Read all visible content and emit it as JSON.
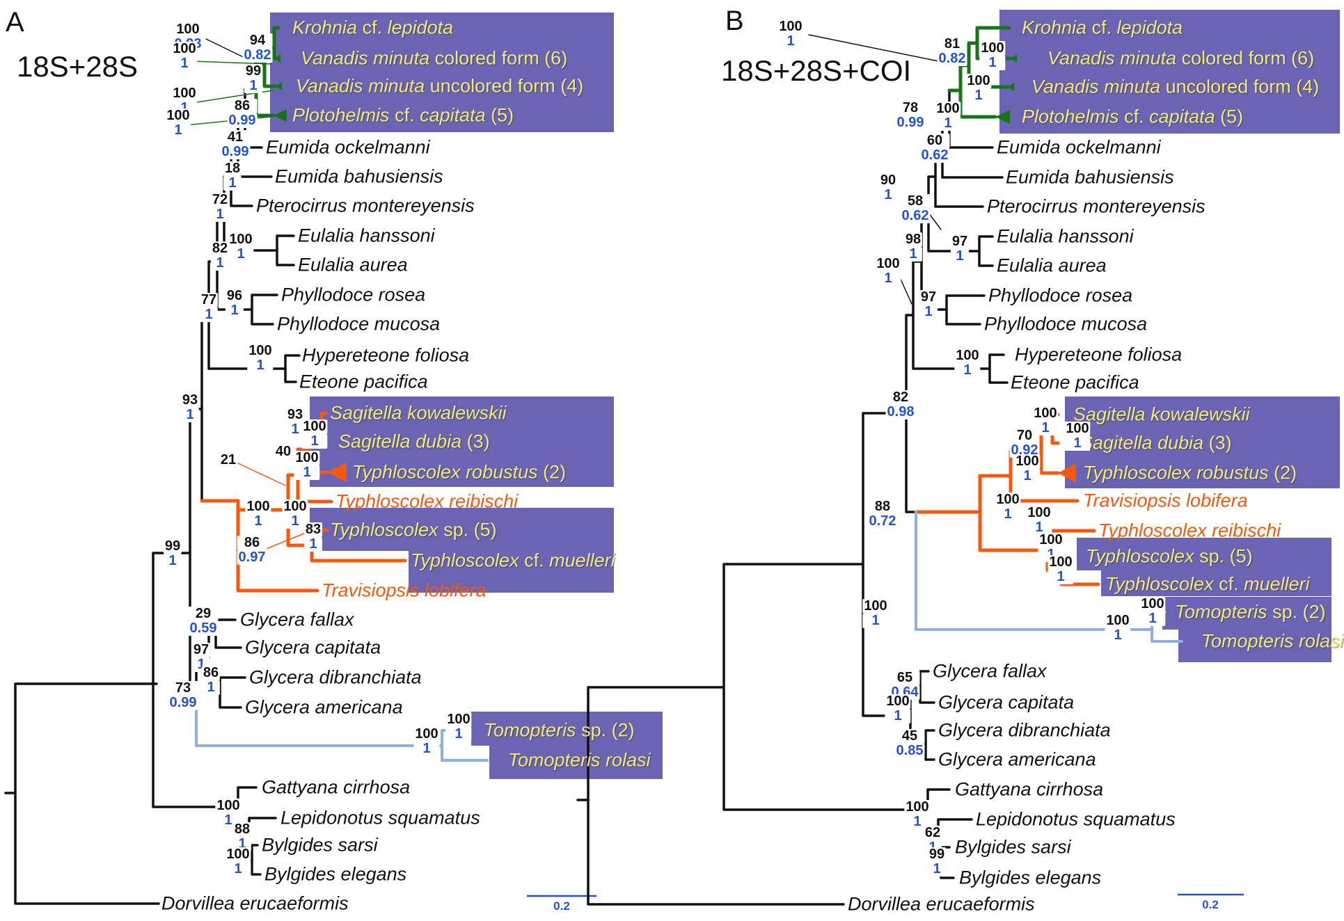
{
  "figure": {
    "colors": {
      "box_purple": "#6b64b4",
      "taxon_yellow": "#f2eb6e",
      "taxon_black": "#111111",
      "clade_green": "#177517",
      "clade_orange": "#f4590e",
      "clade_lightblue": "#8fafe4",
      "branch_black": "#111111",
      "support_bootstrap": "#111111",
      "support_posterior": "#2353d3",
      "scale_blue": "#2353d3"
    },
    "panels": [
      {
        "label": "A",
        "title": "18S+28S",
        "scale_label": "0.2",
        "taxa": [
          {
            "color": "y",
            "segs": [
              [
                "Krohnia",
                1
              ],
              [
                " cf. ",
                0
              ],
              [
                "lepidota",
                1
              ]
            ]
          },
          {
            "color": "y",
            "segs": [
              [
                "Vanadis minuta",
                1
              ],
              [
                " colored form (6)",
                0
              ]
            ]
          },
          {
            "color": "y",
            "segs": [
              [
                "Vanadis minuta",
                1
              ],
              [
                " uncolored form (4)",
                0
              ]
            ]
          },
          {
            "color": "y",
            "segs": [
              [
                "Plotohelmis",
                1
              ],
              [
                " cf. ",
                0
              ],
              [
                "capitata",
                1
              ],
              [
                " (5)",
                0
              ]
            ]
          },
          {
            "color": "k",
            "segs": [
              [
                "Eumida ockelmanni",
                1
              ]
            ]
          },
          {
            "color": "k",
            "segs": [
              [
                "Eumida bahusiensis",
                1
              ]
            ]
          },
          {
            "color": "k",
            "segs": [
              [
                "Pterocirrus montereyensis",
                1
              ]
            ]
          },
          {
            "color": "k",
            "segs": [
              [
                "Eulalia hanssoni",
                1
              ]
            ]
          },
          {
            "color": "k",
            "segs": [
              [
                "Eulalia aurea",
                1
              ]
            ]
          },
          {
            "color": "k",
            "segs": [
              [
                "Phyllodoce rosea",
                1
              ]
            ]
          },
          {
            "color": "k",
            "segs": [
              [
                "Phyllodoce mucosa",
                1
              ]
            ]
          },
          {
            "color": "k",
            "segs": [
              [
                "Hypereteone foliosa",
                1
              ]
            ]
          },
          {
            "color": "k",
            "segs": [
              [
                "Eteone pacifica",
                1
              ]
            ]
          },
          {
            "color": "y",
            "segs": [
              [
                "Sagitella kowalewskii",
                1
              ]
            ]
          },
          {
            "color": "y",
            "segs": [
              [
                "Sagitella dubia",
                1
              ],
              [
                " (3)",
                0
              ]
            ]
          },
          {
            "color": "y",
            "segs": [
              [
                "Typhloscolex robustus",
                1
              ],
              [
                " (2)",
                0
              ]
            ]
          },
          {
            "color": "o",
            "segs": [
              [
                "Typhloscolex reibischi",
                1
              ]
            ]
          },
          {
            "color": "y",
            "segs": [
              [
                "Typhloscolex",
                1
              ],
              [
                " sp. (5)",
                0
              ]
            ]
          },
          {
            "color": "y",
            "segs": [
              [
                "Typhloscolex",
                1
              ],
              [
                " cf. ",
                0
              ],
              [
                "muelleri",
                1
              ]
            ]
          },
          {
            "color": "o",
            "segs": [
              [
                "Travisiopsis lobifera",
                1
              ]
            ]
          },
          {
            "color": "k",
            "segs": [
              [
                "Glycera fallax",
                1
              ]
            ]
          },
          {
            "color": "k",
            "segs": [
              [
                "Glycera capitata",
                1
              ]
            ]
          },
          {
            "color": "k",
            "segs": [
              [
                "Glycera dibranchiata",
                1
              ]
            ]
          },
          {
            "color": "k",
            "segs": [
              [
                "Glycera americana",
                1
              ]
            ]
          },
          {
            "color": "y",
            "segs": [
              [
                "Tomopteris",
                1
              ],
              [
                " sp. (2)",
                0
              ]
            ]
          },
          {
            "color": "y",
            "segs": [
              [
                "Tomopteris rolasi",
                1
              ]
            ]
          },
          {
            "color": "k",
            "segs": [
              [
                "Gattyana cirrhosa",
                1
              ]
            ]
          },
          {
            "color": "k",
            "segs": [
              [
                "Lepidonotus squamatus",
                1
              ]
            ]
          },
          {
            "color": "k",
            "segs": [
              [
                "Bylgides sarsi",
                1
              ]
            ]
          },
          {
            "color": "k",
            "segs": [
              [
                "Bylgides elegans",
                1
              ]
            ]
          },
          {
            "color": "k",
            "segs": [
              [
                "Dorvillea erucaeformis",
                1
              ]
            ]
          }
        ],
        "supports": [
          {
            "bs": "100",
            "pp": "0.93"
          },
          {
            "bs": "94",
            "pp": "0.82"
          },
          {
            "bs": "100",
            "pp": "1"
          },
          {
            "bs": "99",
            "pp": "1"
          },
          {
            "bs": "100",
            "pp": "1"
          },
          {
            "bs": "86",
            "pp": "0.99"
          },
          {
            "bs": "100",
            "pp": "1"
          },
          {
            "bs": "41",
            "pp": "0.99"
          },
          {
            "bs": "18",
            "pp": "1"
          },
          {
            "bs": "72",
            "pp": "1"
          },
          {
            "bs": "100",
            "pp": "1"
          },
          {
            "bs": "82",
            "pp": "1"
          },
          {
            "bs": "96",
            "pp": "1"
          },
          {
            "bs": "77",
            "pp": "1"
          },
          {
            "bs": "100",
            "pp": "1"
          },
          {
            "bs": "93",
            "pp": "1"
          },
          {
            "bs": "93",
            "pp": "1"
          },
          {
            "bs": "100",
            "pp": "1"
          },
          {
            "bs": "40",
            "pp": ""
          },
          {
            "bs": "100",
            "pp": "1"
          },
          {
            "bs": "21",
            "pp": ""
          },
          {
            "bs": "99",
            "pp": "1"
          },
          {
            "bs": "100",
            "pp": "1"
          },
          {
            "bs": "100",
            "pp": "1"
          },
          {
            "bs": "83",
            "pp": "1"
          },
          {
            "bs": "86",
            "pp": "0.97"
          },
          {
            "bs": "29",
            "pp": "0.59"
          },
          {
            "bs": "97",
            "pp": "1"
          },
          {
            "bs": "86",
            "pp": "1"
          },
          {
            "bs": "73",
            "pp": "0.99"
          },
          {
            "bs": "100",
            "pp": "1"
          },
          {
            "bs": "100",
            "pp": "1"
          },
          {
            "bs": "100",
            "pp": "1"
          },
          {
            "bs": "88",
            "pp": "1"
          },
          {
            "bs": "100",
            "pp": "1"
          }
        ]
      },
      {
        "label": "B",
        "title": "18S+28S+COI",
        "scale_label": "0.2",
        "taxa": [
          {
            "color": "y",
            "segs": [
              [
                "Krohnia",
                1
              ],
              [
                " cf. ",
                0
              ],
              [
                "lepidota",
                1
              ]
            ]
          },
          {
            "color": "y",
            "segs": [
              [
                "Vanadis minuta",
                1
              ],
              [
                " colored form (6)",
                0
              ]
            ]
          },
          {
            "color": "y",
            "segs": [
              [
                "Vanadis minuta",
                1
              ],
              [
                " uncolored form (4)",
                0
              ]
            ]
          },
          {
            "color": "y",
            "segs": [
              [
                "Plotohelmis",
                1
              ],
              [
                " cf. ",
                0
              ],
              [
                "capitata",
                1
              ],
              [
                " (5)",
                0
              ]
            ]
          },
          {
            "color": "k",
            "segs": [
              [
                "Eumida ockelmanni",
                1
              ]
            ]
          },
          {
            "color": "k",
            "segs": [
              [
                "Eumida bahusiensis",
                1
              ]
            ]
          },
          {
            "color": "k",
            "segs": [
              [
                "Pterocirrus montereyensis",
                1
              ]
            ]
          },
          {
            "color": "k",
            "segs": [
              [
                "Eulalia hanssoni",
                1
              ]
            ]
          },
          {
            "color": "k",
            "segs": [
              [
                "Eulalia aurea",
                1
              ]
            ]
          },
          {
            "color": "k",
            "segs": [
              [
                "Phyllodoce rosea",
                1
              ]
            ]
          },
          {
            "color": "k",
            "segs": [
              [
                "Phyllodoce mucosa",
                1
              ]
            ]
          },
          {
            "color": "k",
            "segs": [
              [
                "Hypereteone foliosa",
                1
              ]
            ]
          },
          {
            "color": "k",
            "segs": [
              [
                "Eteone pacifica",
                1
              ]
            ]
          },
          {
            "color": "y",
            "segs": [
              [
                "Sagitella kowalewskii",
                1
              ]
            ]
          },
          {
            "color": "y",
            "segs": [
              [
                "Sagitella dubia",
                1
              ],
              [
                " (3)",
                0
              ]
            ]
          },
          {
            "color": "y",
            "segs": [
              [
                "Typhloscolex robustus",
                1
              ],
              [
                " (2)",
                0
              ]
            ]
          },
          {
            "color": "o",
            "segs": [
              [
                "Travisiopsis lobifera",
                1
              ]
            ]
          },
          {
            "color": "o",
            "segs": [
              [
                "Typhloscolex reibischi",
                1
              ]
            ]
          },
          {
            "color": "y",
            "segs": [
              [
                "Typhloscolex",
                1
              ],
              [
                " sp. (5)",
                0
              ]
            ]
          },
          {
            "color": "y",
            "segs": [
              [
                "Typhloscolex",
                1
              ],
              [
                " cf. ",
                0
              ],
              [
                "muelleri",
                1
              ]
            ]
          },
          {
            "color": "y",
            "segs": [
              [
                "Tomopteris",
                1
              ],
              [
                " sp. (2)",
                0
              ]
            ]
          },
          {
            "color": "y",
            "segs": [
              [
                "Tomopteris rolasi",
                1
              ]
            ]
          },
          {
            "color": "k",
            "segs": [
              [
                "Glycera fallax",
                1
              ]
            ]
          },
          {
            "color": "k",
            "segs": [
              [
                "Glycera capitata",
                1
              ]
            ]
          },
          {
            "color": "k",
            "segs": [
              [
                "Glycera dibranchiata",
                1
              ]
            ]
          },
          {
            "color": "k",
            "segs": [
              [
                "Glycera americana",
                1
              ]
            ]
          },
          {
            "color": "k",
            "segs": [
              [
                "Gattyana cirrhosa",
                1
              ]
            ]
          },
          {
            "color": "k",
            "segs": [
              [
                "Lepidonotus squamatus",
                1
              ]
            ]
          },
          {
            "color": "k",
            "segs": [
              [
                "Bylgides sarsi",
                1
              ]
            ]
          },
          {
            "color": "k",
            "segs": [
              [
                "Bylgides elegans",
                1
              ]
            ]
          },
          {
            "color": "k",
            "segs": [
              [
                "Dorvillea erucaeformis",
                1
              ]
            ]
          }
        ],
        "supports": [
          {
            "bs": "100",
            "pp": "1"
          },
          {
            "bs": "81",
            "pp": "0.82"
          },
          {
            "bs": "100",
            "pp": "1"
          },
          {
            "bs": "100",
            "pp": "1"
          },
          {
            "bs": "78",
            "pp": "0.99"
          },
          {
            "bs": "100",
            "pp": "1"
          },
          {
            "bs": "60",
            "pp": "0.62"
          },
          {
            "bs": "90",
            "pp": "1"
          },
          {
            "bs": "58",
            "pp": "0.62"
          },
          {
            "bs": "98",
            "pp": "1"
          },
          {
            "bs": "97",
            "pp": "1"
          },
          {
            "bs": "100",
            "pp": "1"
          },
          {
            "bs": "97",
            "pp": "1"
          },
          {
            "bs": "100",
            "pp": "1"
          },
          {
            "bs": "82",
            "pp": "0.98"
          },
          {
            "bs": "100",
            "pp": "1"
          },
          {
            "bs": "100",
            "pp": "1"
          },
          {
            "bs": "70",
            "pp": "0.92"
          },
          {
            "bs": "100",
            "pp": "1"
          },
          {
            "bs": "100",
            "pp": "1"
          },
          {
            "bs": "88",
            "pp": "0.72"
          },
          {
            "bs": "100",
            "pp": "1"
          },
          {
            "bs": "100",
            "pp": "1"
          },
          {
            "bs": "100",
            "pp": "1"
          },
          {
            "bs": "100",
            "pp": "1"
          },
          {
            "bs": "100",
            "pp": "1"
          },
          {
            "bs": "100",
            "pp": "1"
          },
          {
            "bs": "65",
            "pp": "0.64"
          },
          {
            "bs": "100",
            "pp": "1"
          },
          {
            "bs": "45",
            "pp": "0.85"
          },
          {
            "bs": "100",
            "pp": "1"
          },
          {
            "bs": "62",
            "pp": "1"
          },
          {
            "bs": "99",
            "pp": "1"
          }
        ]
      }
    ]
  }
}
